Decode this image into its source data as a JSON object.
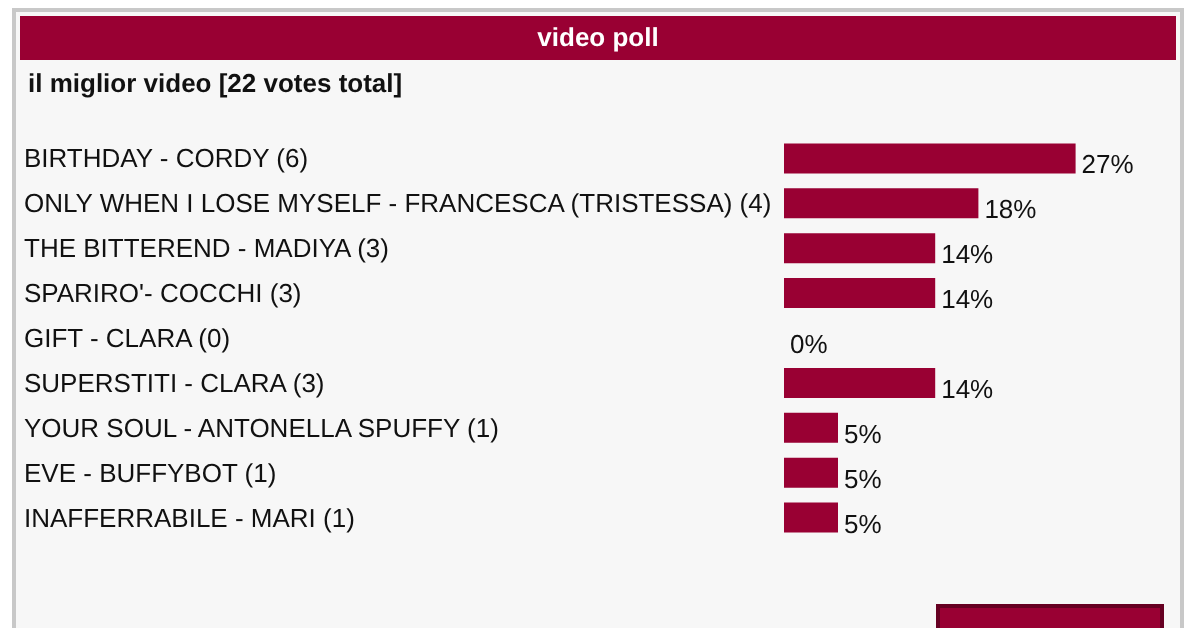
{
  "chart_data": {
    "type": "bar",
    "orientation": "horizontal",
    "title": "video poll",
    "subtitle": "il miglior video [22 votes total]",
    "categories": [
      "BIRTHDAY - CORDY (6)",
      "ONLY WHEN I LOSE MYSELF - FRANCESCA (TRISTESSA) (4)",
      "THE BITTEREND - MADIYA (3)",
      "SPARIRO'- COCCHI (3)",
      "GIFT - CLARA (0)",
      "SUPERSTITI - CLARA (3)",
      "YOUR SOUL - ANTONELLA SPUFFY (1)",
      "EVE - BUFFYBOT (1)",
      "INAFFERRABILE - MARI (1)"
    ],
    "values": [
      27,
      18,
      14,
      14,
      0,
      14,
      5,
      5,
      5
    ],
    "value_labels": [
      "27%",
      "18%",
      "14%",
      "14%",
      "0%",
      "14%",
      "5%",
      "5%",
      "5%"
    ],
    "color": "#990033"
  }
}
